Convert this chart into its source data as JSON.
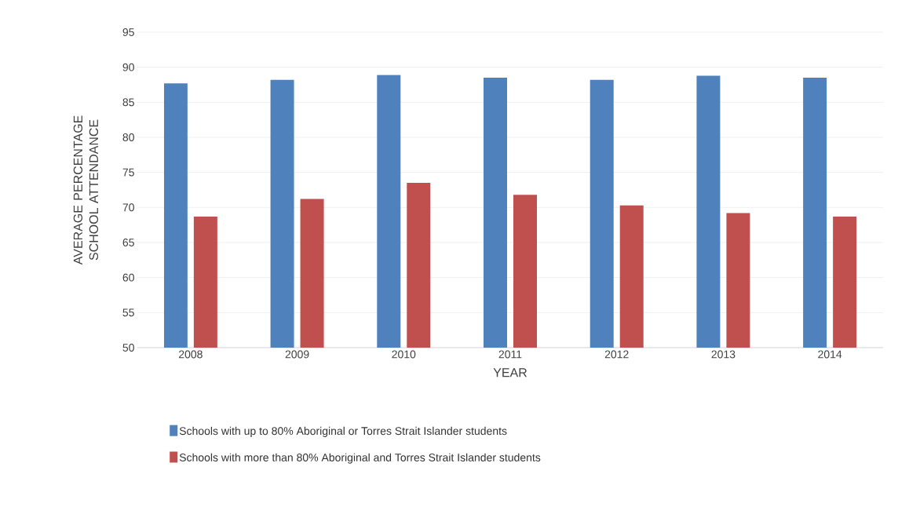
{
  "chart_data": {
    "type": "bar",
    "xlabel": "YEAR",
    "ylabel": "AVERAGE PERCENTAGE SCHOOL ATTENDANCE",
    "categories": [
      "2008",
      "2009",
      "2010",
      "2011",
      "2012",
      "2013",
      "2014"
    ],
    "series": [
      {
        "name": "Schools with up to 80% Aboriginal or Torres Strait Islander students",
        "color": "#4f81bd",
        "values": [
          87.7,
          88.2,
          88.9,
          88.5,
          88.2,
          88.8,
          88.5
        ]
      },
      {
        "name": "Schools with more than 80% Aboriginal and Torres Strait Islander students",
        "color": "#c0504d",
        "values": [
          68.7,
          71.2,
          73.5,
          71.8,
          70.3,
          69.2,
          68.7
        ]
      }
    ],
    "ylim": [
      50,
      95
    ],
    "yticks": [
      50,
      55,
      60,
      65,
      70,
      75,
      80,
      85,
      90,
      95
    ],
    "grid": "y",
    "legend": "bottom"
  }
}
